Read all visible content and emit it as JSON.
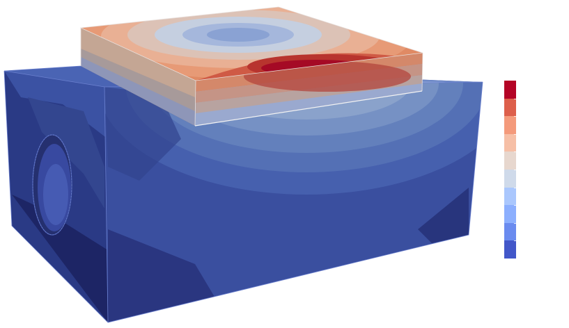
{
  "scene": {
    "object": "block-with-raised-pad",
    "background_color": "#ffffff"
  },
  "colorbar": {
    "orientation": "vertical",
    "level_count": 10,
    "tick_labels_visible": false,
    "colors": [
      "#b40426",
      "#dd5f4b",
      "#f49a7b",
      "#f6bfa6",
      "#e7d7ce",
      "#cfdaea",
      "#aac7fd",
      "#8caffe",
      "#6a8bef",
      "#4257c9"
    ]
  },
  "palette": {
    "deep_blue": "#1f2a6b",
    "mid_blue": "#3d55a6",
    "light_blue": "#6a86c8",
    "pale_blue": "#9eb4d9",
    "peach": "#e9b79c",
    "orange": "#d9785a",
    "red": "#c0302f",
    "dark_red": "#a50a25"
  }
}
